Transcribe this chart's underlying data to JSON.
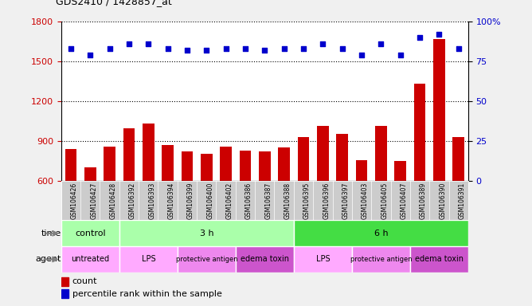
{
  "title": "GDS2410 / 1428857_at",
  "samples": [
    "GSM106426",
    "GSM106427",
    "GSM106428",
    "GSM106392",
    "GSM106393",
    "GSM106394",
    "GSM106399",
    "GSM106400",
    "GSM106402",
    "GSM106386",
    "GSM106387",
    "GSM106388",
    "GSM106395",
    "GSM106396",
    "GSM106397",
    "GSM106403",
    "GSM106405",
    "GSM106407",
    "GSM106389",
    "GSM106390",
    "GSM106391"
  ],
  "counts": [
    840,
    700,
    855,
    995,
    1030,
    870,
    820,
    800,
    855,
    825,
    820,
    850,
    930,
    1010,
    950,
    755,
    1010,
    745,
    1330,
    1670,
    930
  ],
  "percentile": [
    83,
    79,
    83,
    86,
    86,
    83,
    82,
    82,
    83,
    83,
    82,
    83,
    83,
    86,
    83,
    79,
    86,
    79,
    90,
    92,
    83
  ],
  "ylim_left": [
    600,
    1800
  ],
  "ylim_right": [
    0,
    100
  ],
  "yticks_left": [
    600,
    900,
    1200,
    1500,
    1800
  ],
  "ytick_labels_left": [
    "600",
    "900",
    "1200",
    "1500",
    "1800"
  ],
  "yticks_right": [
    0,
    25,
    50,
    75,
    100
  ],
  "ytick_labels_right": [
    "0",
    "25",
    "50",
    "75",
    "100%"
  ],
  "bar_color": "#cc0000",
  "dot_color": "#0000cc",
  "time_groups": [
    {
      "label": "control",
      "start": 0,
      "end": 3,
      "color": "#aaffaa"
    },
    {
      "label": "3 h",
      "start": 3,
      "end": 12,
      "color": "#aaffaa"
    },
    {
      "label": "6 h",
      "start": 12,
      "end": 21,
      "color": "#44dd44"
    }
  ],
  "agent_groups": [
    {
      "label": "untreated",
      "start": 0,
      "end": 3,
      "color": "#ffaaff"
    },
    {
      "label": "LPS",
      "start": 3,
      "end": 6,
      "color": "#ffaaff"
    },
    {
      "label": "protective antigen",
      "start": 6,
      "end": 9,
      "color": "#ee88ee"
    },
    {
      "label": "edema toxin",
      "start": 9,
      "end": 12,
      "color": "#cc55cc"
    },
    {
      "label": "LPS",
      "start": 12,
      "end": 15,
      "color": "#ffaaff"
    },
    {
      "label": "protective antigen",
      "start": 15,
      "end": 18,
      "color": "#ee88ee"
    },
    {
      "label": "edema toxin",
      "start": 18,
      "end": 21,
      "color": "#cc55cc"
    }
  ],
  "xlabel_bg": "#cccccc",
  "fig_bg": "#f0f0f0",
  "plot_bg": "#ffffff"
}
